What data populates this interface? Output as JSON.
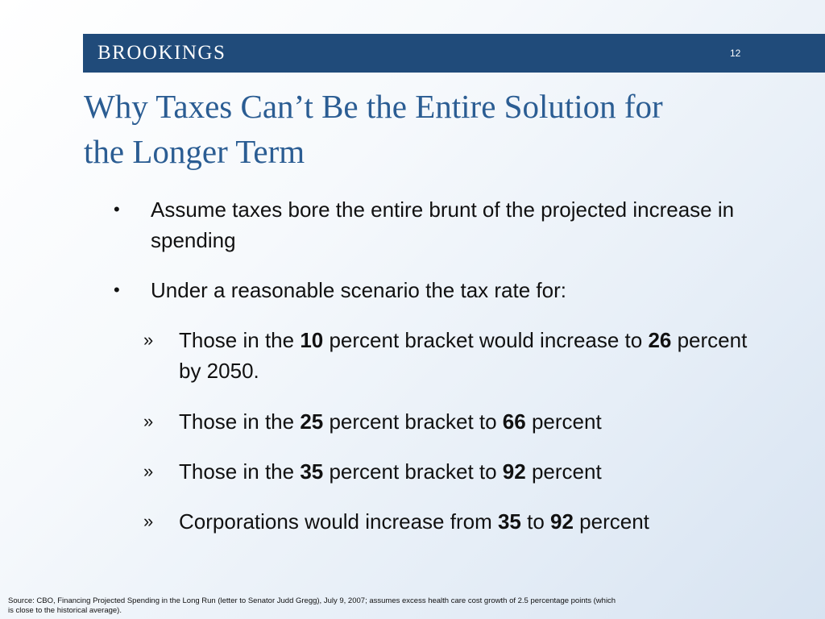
{
  "header": {
    "logo_text": "BROOKINGS",
    "slide_number": "12",
    "bar_color": "#204b7a"
  },
  "title": {
    "line1": "Why Taxes Can’t Be the Entire Solution for",
    "line2": "the Longer Term",
    "color": "#2b5d93"
  },
  "bullets": {
    "marker_level1": "•",
    "marker_level2": "»",
    "b1": "Assume taxes bore the entire brunt of the projected increase in spending",
    "b2": "Under a reasonable scenario the tax rate for:",
    "s1": {
      "t1": "Those in the ",
      "n1": "10",
      "t2": " percent bracket would increase to ",
      "n2": "26",
      "t3": " percent by 2050."
    },
    "s2": {
      "t1": "Those in the ",
      "n1": "25",
      "t2": " percent bracket to ",
      "n2": "66",
      "t3": " percent"
    },
    "s3": {
      "t1": "Those in the ",
      "n1": "35",
      "t2": " percent bracket to ",
      "n2": "92",
      "t3": " percent"
    },
    "s4": {
      "t1": "Corporations would increase from ",
      "n1": "35",
      "t2": " to ",
      "n2": "92",
      "t3": " percent"
    }
  },
  "footer": {
    "source": "Source: CBO, Financing Projected Spending in the Long Run (letter to Senator Judd Gregg), July 9, 2007; assumes excess health care cost growth of 2.5 percentage points (which is close to the historical average)."
  }
}
